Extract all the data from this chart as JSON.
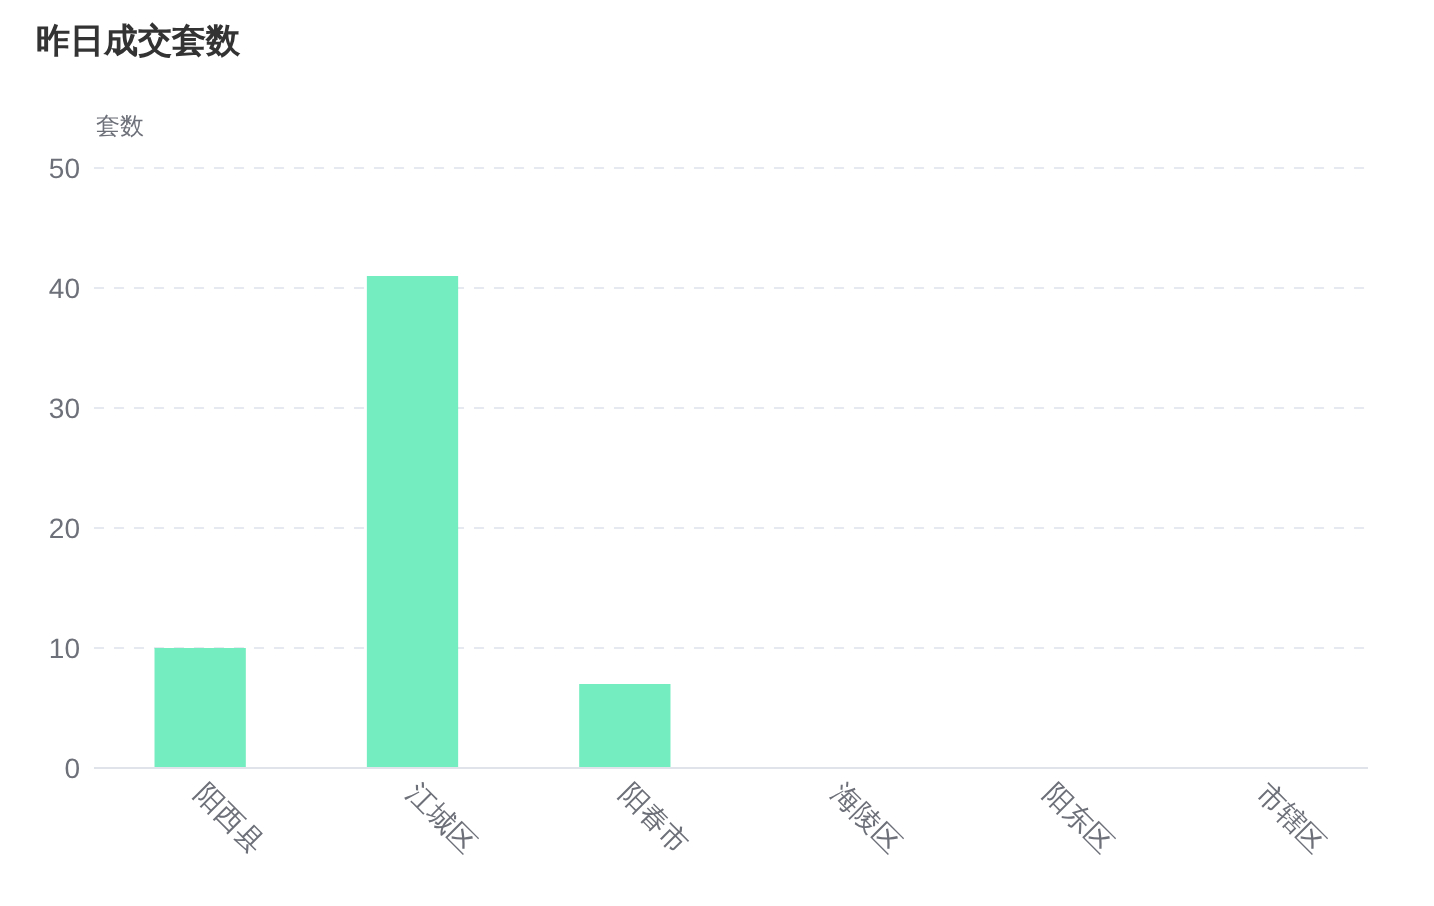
{
  "chart_data": {
    "type": "bar",
    "title": "昨日成交套数",
    "ylabel": "套数",
    "categories": [
      "阳西县",
      "江城区",
      "阳春市",
      "海陵区",
      "阳东区",
      "市辖区"
    ],
    "values": [
      10,
      41,
      7,
      0,
      0,
      0
    ],
    "color": "#74edc0",
    "ylim": [
      0,
      50
    ],
    "yticks": [
      0,
      10,
      20,
      30,
      40,
      50
    ],
    "grid": "y"
  }
}
